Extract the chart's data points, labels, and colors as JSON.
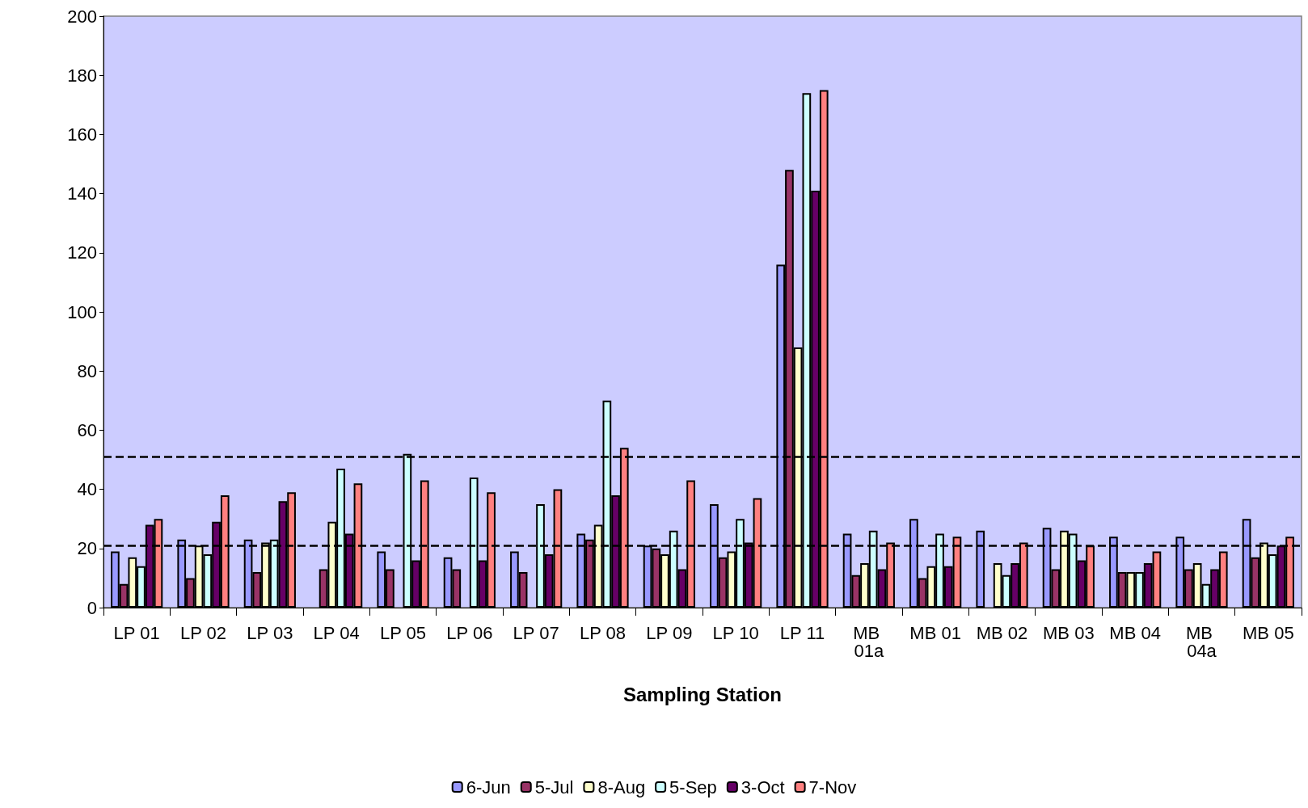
{
  "chart_data": {
    "type": "bar",
    "xlabel": "Sampling Station",
    "categories": [
      "LP 01",
      "LP 02",
      "LP 03",
      "LP 04",
      "LP 05",
      "LP 06",
      "LP 07",
      "LP 08",
      "LP 09",
      "LP 10",
      "LP 11",
      "MB 01a",
      "MB 01",
      "MB 02",
      "MB 03",
      "MB 04",
      "MB 04a",
      "MB 05"
    ],
    "series": [
      {
        "name": "6-Jun",
        "color": "#9999ff",
        "values": [
          19,
          23,
          23,
          null,
          19,
          17,
          19,
          25,
          21,
          35,
          116,
          25,
          30,
          26,
          27,
          24,
          24,
          30
        ]
      },
      {
        "name": "5-Jul",
        "color": "#993366",
        "values": [
          8,
          10,
          12,
          13,
          13,
          13,
          12,
          23,
          20,
          17,
          148,
          11,
          10,
          null,
          13,
          12,
          13,
          17
        ]
      },
      {
        "name": "8-Aug",
        "color": "#ffffcc",
        "values": [
          17,
          21,
          22,
          29,
          null,
          null,
          null,
          28,
          18,
          19,
          88,
          15,
          14,
          15,
          26,
          12,
          15,
          22
        ]
      },
      {
        "name": "5-Sep",
        "color": "#ccffff",
        "values": [
          14,
          18,
          23,
          47,
          52,
          44,
          35,
          70,
          26,
          30,
          174,
          26,
          25,
          11,
          25,
          12,
          8,
          18
        ]
      },
      {
        "name": "3-Oct",
        "color": "#660066",
        "values": [
          28,
          29,
          36,
          25,
          16,
          16,
          18,
          38,
          13,
          22,
          141,
          13,
          14,
          15,
          16,
          15,
          13,
          21
        ]
      },
      {
        "name": "7-Nov",
        "color": "#ff8080",
        "values": [
          30,
          38,
          39,
          42,
          43,
          39,
          40,
          54,
          43,
          37,
          175,
          22,
          24,
          22,
          21,
          19,
          19,
          24
        ]
      }
    ],
    "ylim": [
      0,
      200
    ],
    "yticks": [
      0,
      20,
      40,
      60,
      80,
      100,
      120,
      140,
      160,
      180,
      200
    ],
    "ref_lines": [
      {
        "axis": "y",
        "value": 51,
        "line_style": "dashed",
        "color": "#000000"
      },
      {
        "axis": "y",
        "value": 21,
        "line_style": "dashed",
        "color": "#000000"
      }
    ],
    "grid": false,
    "legend": "bottom"
  }
}
